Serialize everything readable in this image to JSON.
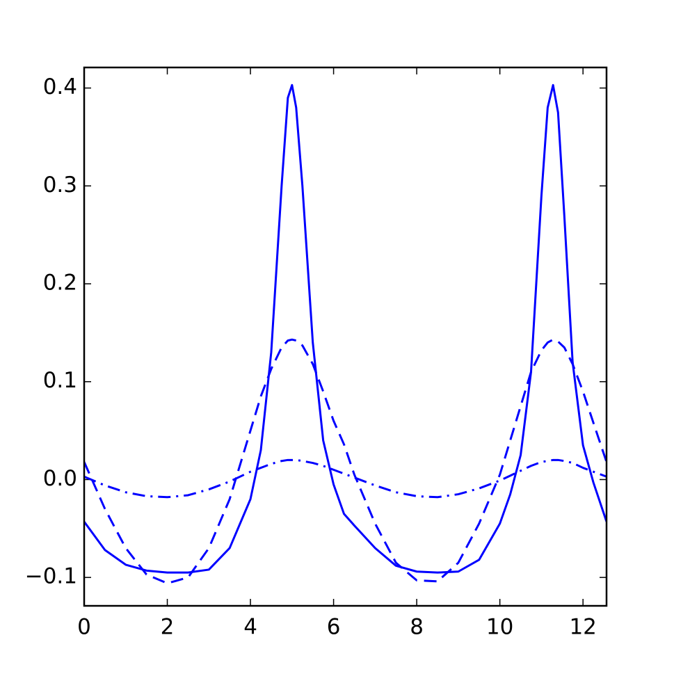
{
  "chart_data": {
    "type": "line",
    "x": [
      0,
      0.5,
      1,
      1.5,
      2,
      2.5,
      3,
      3.5,
      4,
      4.25,
      4.5,
      4.75,
      4.9,
      5,
      5.1,
      5.25,
      5.5,
      5.75,
      6,
      6.25,
      6.5,
      7,
      7.5,
      8,
      8.5,
      9,
      9.5,
      10,
      10.25,
      10.5,
      10.75,
      11,
      11.15,
      11.28,
      11.4,
      11.55,
      11.75,
      12,
      12.25,
      12.566
    ],
    "series": [
      {
        "color": "#0000ff",
        "dash": "solid",
        "values": [
          -0.043,
          -0.072,
          -0.087,
          -0.093,
          -0.095,
          -0.095,
          -0.092,
          -0.07,
          -0.02,
          0.03,
          0.13,
          0.3,
          0.39,
          0.403,
          0.38,
          0.3,
          0.14,
          0.04,
          -0.005,
          -0.035,
          -0.047,
          -0.07,
          -0.088,
          -0.094,
          -0.095,
          -0.094,
          -0.082,
          -0.045,
          -0.015,
          0.025,
          0.11,
          0.29,
          0.38,
          0.403,
          0.375,
          0.27,
          0.12,
          0.035,
          -0.003,
          -0.043
        ]
      },
      {
        "color": "#0000ff",
        "dash": "dashed",
        "values": [
          0.018,
          -0.03,
          -0.07,
          -0.097,
          -0.106,
          -0.1,
          -0.07,
          -0.02,
          0.05,
          0.085,
          0.113,
          0.135,
          0.142,
          0.143,
          0.142,
          0.137,
          0.118,
          0.09,
          0.06,
          0.036,
          0.005,
          -0.045,
          -0.085,
          -0.103,
          -0.104,
          -0.085,
          -0.045,
          0.005,
          0.04,
          0.075,
          0.11,
          0.132,
          0.14,
          0.143,
          0.141,
          0.135,
          0.118,
          0.09,
          0.058,
          0.018
        ]
      },
      {
        "color": "#0000ff",
        "dash": "dashdot",
        "values": [
          0.003,
          -0.006,
          -0.013,
          -0.017,
          -0.018,
          -0.016,
          -0.01,
          -0.002,
          0.008,
          0.012,
          0.016,
          0.019,
          0.02,
          0.02,
          0.02,
          0.019,
          0.017,
          0.014,
          0.01,
          0.006,
          0.002,
          -0.006,
          -0.013,
          -0.017,
          -0.018,
          -0.015,
          -0.009,
          -0.001,
          0.004,
          0.009,
          0.014,
          0.018,
          0.019,
          0.02,
          0.02,
          0.019,
          0.017,
          0.012,
          0.008,
          0.003
        ]
      }
    ],
    "xlim": [
      0,
      12.566
    ],
    "xticks": [
      0,
      2,
      4,
      6,
      8,
      10,
      12
    ],
    "ylim": [
      -0.129,
      0.421
    ],
    "yticks": [
      {
        "value": -0.1,
        "label": "−0.1"
      },
      {
        "value": 0,
        "label": "0.0"
      },
      0.1,
      0.2,
      0.3,
      0.4
    ],
    "grid": false
  }
}
